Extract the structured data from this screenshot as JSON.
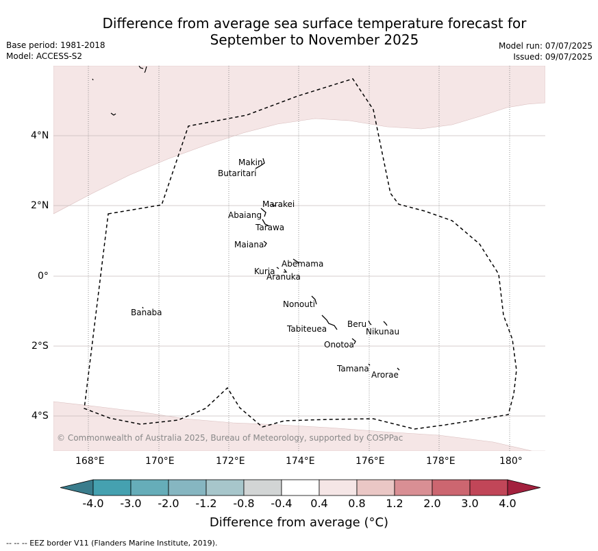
{
  "title_line1": "Difference from average sea surface temperature forecast for",
  "title_line2": "September to November 2025",
  "base_period": "Base period: 1981-2018",
  "model": "Model: ACCESS-S2",
  "model_run": "Model run: 07/07/2025",
  "issued": "Issued: 09/07/2025",
  "copyright": "© Commonwealth of Australia 2025, Bureau of Meteorology, supported by COSPPac",
  "map": {
    "lon_range": [
      167,
      181
    ],
    "lat_range": [
      -5,
      6
    ],
    "lon_ticks": [
      "168°E",
      "170°E",
      "172°E",
      "174°E",
      "176°E",
      "178°E",
      "180°"
    ],
    "lat_ticks": [
      "4°N",
      "2°N",
      "0°",
      "2°S",
      "4°S"
    ],
    "islands": [
      {
        "name": "Makin",
        "lon": 172.9,
        "lat": 3.2
      },
      {
        "name": "Butaritari",
        "lon": 172.8,
        "lat": 3.05
      },
      {
        "name": "Marakei",
        "lon": 173.3,
        "lat": 2.0
      },
      {
        "name": "Abaiang",
        "lon": 173.0,
        "lat": 1.8
      },
      {
        "name": "Tarawa",
        "lon": 173.0,
        "lat": 1.4
      },
      {
        "name": "Maiana",
        "lon": 173.0,
        "lat": 0.95
      },
      {
        "name": "Abemama",
        "lon": 173.9,
        "lat": 0.45
      },
      {
        "name": "Kuria",
        "lon": 173.4,
        "lat": 0.2
      },
      {
        "name": "Aranuka",
        "lon": 173.6,
        "lat": 0.15
      },
      {
        "name": "Banaba",
        "lon": 169.5,
        "lat": -0.88
      },
      {
        "name": "Nonouti",
        "lon": 174.4,
        "lat": -0.7
      },
      {
        "name": "Tabiteuea",
        "lon": 174.8,
        "lat": -1.3
      },
      {
        "name": "Beru",
        "lon": 176.0,
        "lat": -1.35
      },
      {
        "name": "Nikunau",
        "lon": 176.5,
        "lat": -1.35
      },
      {
        "name": "Onotoa",
        "lon": 175.55,
        "lat": -1.8
      },
      {
        "name": "Tamana",
        "lon": 175.98,
        "lat": -2.5
      },
      {
        "name": "Arorae",
        "lon": 176.82,
        "lat": -2.65
      }
    ]
  },
  "colorbar": {
    "labels": [
      "-4.0",
      "-3.0",
      "-2.0",
      "-1.2",
      "-0.8",
      "-0.4",
      "0.4",
      "0.8",
      "1.2",
      "2.0",
      "3.0",
      "4.0"
    ],
    "colors": [
      "#3a7c8c",
      "#45a1b0",
      "#66adb9",
      "#86b6c1",
      "#a7c6cb",
      "#d2d5d5",
      "#ffffff",
      "#f5e6e6",
      "#eac7c5",
      "#d98f94",
      "#cc6670",
      "#c14658",
      "#a3213e"
    ],
    "title": "Difference from average (°C)",
    "values_dominant": "0.4 to 0.8 (north and south margins), -0.4 to 0.4 elsewhere"
  },
  "footer": "--  --  -- EEZ border V11 (Flanders Marine Institute, 2019)."
}
